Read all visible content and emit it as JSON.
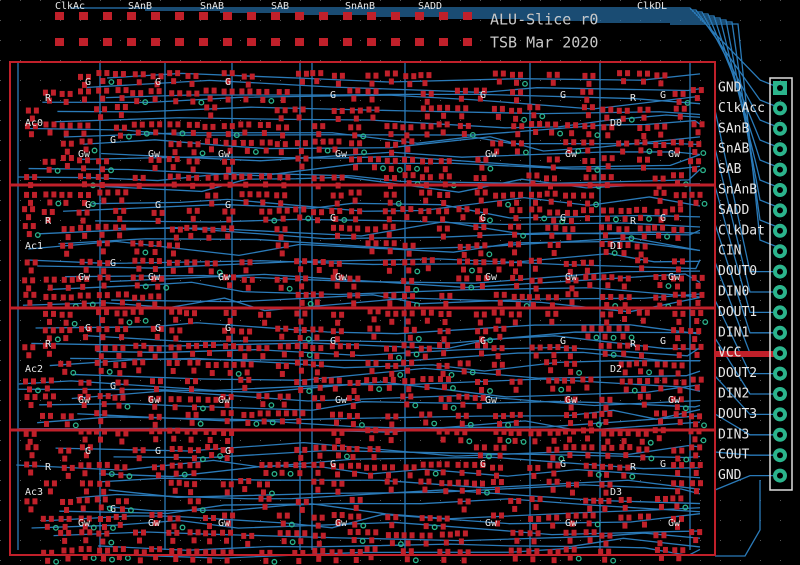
{
  "header": {
    "title": "ALU-Slice r0",
    "subtitle": "TSB Mar 2020"
  },
  "top_signals": [
    "ClkAc",
    "SAnB",
    "SnAB",
    "SAB",
    "SnAnB",
    "SADD",
    "ClkDL"
  ],
  "connector": {
    "pins": [
      "GND",
      "ClkAcc",
      "SAnB",
      "SnAB",
      "SAB",
      "SnAnB",
      "SADD",
      "ClkDat",
      "CIN",
      "DOUT0",
      "DIN0",
      "DOUT1",
      "DIN1",
      "VCC",
      "DOUT2",
      "DIN2",
      "DOUT3",
      "DIN3",
      "COUT",
      "GND"
    ]
  },
  "slices": [
    {
      "acc": "Ac0",
      "data": "D0"
    },
    {
      "acc": "Ac1",
      "data": "D1"
    },
    {
      "acc": "Ac2",
      "data": "D2"
    },
    {
      "acc": "Ac3",
      "data": "D3"
    }
  ],
  "silk_marks": [
    "R",
    "G",
    "Gw"
  ]
}
